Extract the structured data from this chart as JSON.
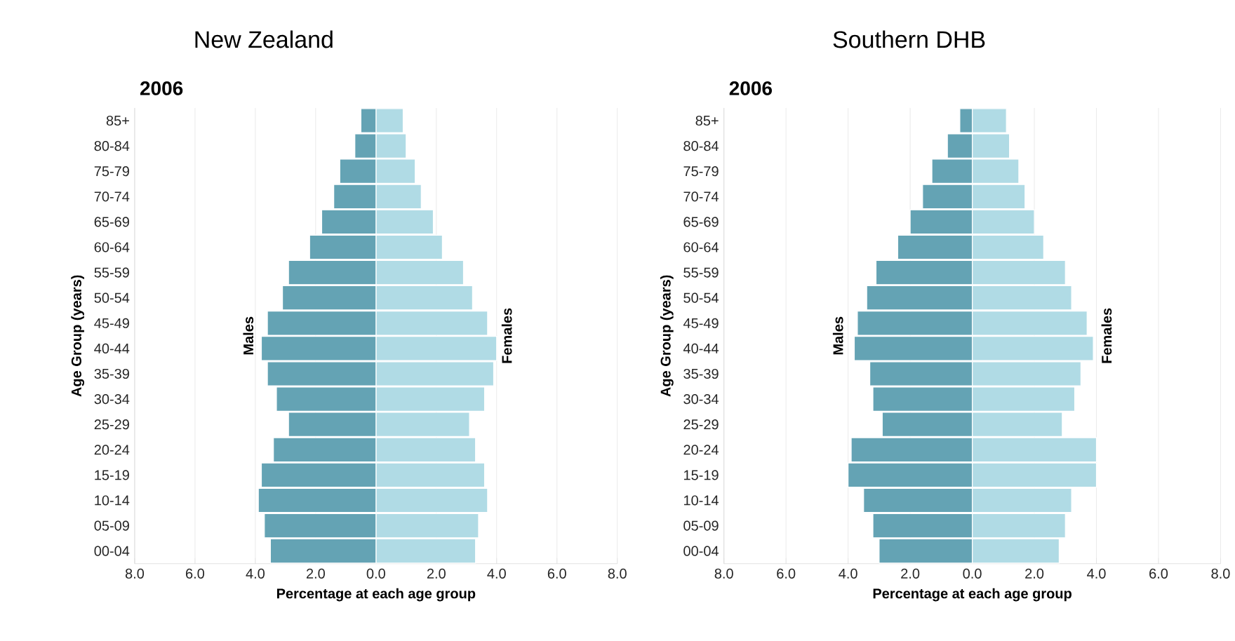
{
  "chart_data": [
    {
      "type": "bar",
      "orientation": "horizontal",
      "title": "New Zealand",
      "subtitle": "2006",
      "xlabel": "Percentage at each age group",
      "ylabel": "Age Group (years)",
      "categories": [
        "85+",
        "80-84",
        "75-79",
        "70-74",
        "65-69",
        "60-64",
        "55-59",
        "50-54",
        "45-49",
        "40-44",
        "35-39",
        "30-34",
        "25-29",
        "20-24",
        "15-19",
        "10-14",
        "05-09",
        "00-04"
      ],
      "series": [
        {
          "name": "Males",
          "color": "#64a3b4",
          "values": [
            -0.5,
            -0.7,
            -1.2,
            -1.4,
            -1.8,
            -2.2,
            -2.9,
            -3.1,
            -3.6,
            -3.8,
            -3.6,
            -3.3,
            -2.9,
            -3.4,
            -3.8,
            -3.9,
            -3.7,
            -3.5
          ]
        },
        {
          "name": "Females",
          "color": "#b0dbe5",
          "values": [
            0.9,
            1.0,
            1.3,
            1.5,
            1.9,
            2.2,
            2.9,
            3.2,
            3.7,
            4.0,
            3.9,
            3.6,
            3.1,
            3.3,
            3.6,
            3.7,
            3.4,
            3.3
          ]
        }
      ],
      "xlim": [
        -8,
        8
      ],
      "xticks": [
        {
          "value": -8,
          "label": "8.0"
        },
        {
          "value": -6,
          "label": "6.0"
        },
        {
          "value": -4,
          "label": "4.0"
        },
        {
          "value": -2,
          "label": "2.0"
        },
        {
          "value": 0,
          "label": "0.0"
        },
        {
          "value": 2,
          "label": "2.0"
        },
        {
          "value": 4,
          "label": "4.0"
        },
        {
          "value": 6,
          "label": "6.0"
        },
        {
          "value": 8,
          "label": "8.0"
        }
      ],
      "grid": "x",
      "legend": false,
      "stacked": true
    },
    {
      "type": "bar",
      "orientation": "horizontal",
      "title": "Southern DHB",
      "subtitle": "2006",
      "xlabel": "Percentage at each age group",
      "ylabel": "Age Group (years)",
      "categories": [
        "85+",
        "80-84",
        "75-79",
        "70-74",
        "65-69",
        "60-64",
        "55-59",
        "50-54",
        "45-49",
        "40-44",
        "35-39",
        "30-34",
        "25-29",
        "20-24",
        "15-19",
        "10-14",
        "05-09",
        "00-04"
      ],
      "series": [
        {
          "name": "Males",
          "color": "#64a3b4",
          "values": [
            -0.4,
            -0.8,
            -1.3,
            -1.6,
            -2.0,
            -2.4,
            -3.1,
            -3.4,
            -3.7,
            -3.8,
            -3.3,
            -3.2,
            -2.9,
            -3.9,
            -4.0,
            -3.5,
            -3.2,
            -3.0
          ]
        },
        {
          "name": "Females",
          "color": "#b0dbe5",
          "values": [
            1.1,
            1.2,
            1.5,
            1.7,
            2.0,
            2.3,
            3.0,
            3.2,
            3.7,
            3.9,
            3.5,
            3.3,
            2.9,
            4.0,
            4.0,
            3.2,
            3.0,
            2.8
          ]
        }
      ],
      "xlim": [
        -8,
        8
      ],
      "xticks": [
        {
          "value": -8,
          "label": "8.0"
        },
        {
          "value": -6,
          "label": "6.0"
        },
        {
          "value": -4,
          "label": "4.0"
        },
        {
          "value": -2,
          "label": "2.0"
        },
        {
          "value": 0,
          "label": "0.0"
        },
        {
          "value": 2,
          "label": "2.0"
        },
        {
          "value": 4,
          "label": "4.0"
        },
        {
          "value": 6,
          "label": "6.0"
        },
        {
          "value": 8,
          "label": "8.0"
        }
      ],
      "grid": "x",
      "legend": false,
      "stacked": true
    }
  ]
}
